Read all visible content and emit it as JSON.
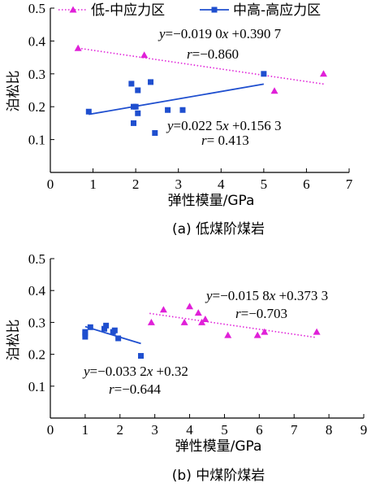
{
  "chart_data": [
    {
      "type": "scatter",
      "caption": "(a) 低煤阶煤岩",
      "xlabel": "弹性模量/GPa",
      "ylabel": "泊松比",
      "xlim": [
        0,
        7
      ],
      "ylim": [
        0,
        0.5
      ],
      "xticks": [
        "0",
        "1",
        "2",
        "3",
        "4",
        "5",
        "6",
        "7"
      ],
      "yticks": [
        "0.1",
        "0.2",
        "0.3",
        "0.4",
        "0.5"
      ],
      "legend_position": "top",
      "series": [
        {
          "name": "低-中应力区",
          "color": "#e020d8",
          "marker": "triangle",
          "line_style": "dotted",
          "x": [
            0.65,
            2.2,
            5.25,
            6.4
          ],
          "y": [
            0.378,
            0.357,
            0.248,
            0.3
          ],
          "fit": {
            "slope": -0.019,
            "intercept": 0.3907,
            "x_range": [
              0.65,
              6.4
            ]
          },
          "equation": "y=−0.019 0x +0.390 7",
          "r_text": "r=−0.860"
        },
        {
          "name": "中高-高应力区",
          "color": "#1f4fcf",
          "marker": "square",
          "line_style": "solid",
          "x": [
            0.9,
            1.9,
            1.95,
            1.95,
            2.0,
            2.05,
            2.05,
            2.35,
            2.45,
            2.75,
            3.1,
            5.0
          ],
          "y": [
            0.185,
            0.27,
            0.2,
            0.15,
            0.2,
            0.18,
            0.25,
            0.275,
            0.12,
            0.19,
            0.19,
            0.3
          ],
          "fit": {
            "slope": 0.0225,
            "intercept": 0.1563,
            "x_range": [
              0.9,
              5.0
            ]
          },
          "equation": "y=0.022 5x +0.156 3",
          "r_text": "r= 0.413"
        }
      ]
    },
    {
      "type": "scatter",
      "caption": "(b) 中煤阶煤岩",
      "xlabel": "弹性模量/GPa",
      "ylabel": "泊松比",
      "xlim": [
        0,
        9
      ],
      "ylim": [
        0,
        0.5
      ],
      "xticks": [
        "0",
        "1",
        "2",
        "3",
        "4",
        "5",
        "6",
        "7",
        "8",
        "9"
      ],
      "yticks": [
        "0.1",
        "0.2",
        "0.3",
        "0.4",
        "0.5"
      ],
      "series": [
        {
          "color": "#e020d8",
          "marker": "triangle",
          "line_style": "dotted",
          "x": [
            2.9,
            3.25,
            3.85,
            4.0,
            4.25,
            4.35,
            4.45,
            5.1,
            5.95,
            6.15,
            7.65
          ],
          "y": [
            0.3,
            0.34,
            0.3,
            0.35,
            0.33,
            0.3,
            0.31,
            0.26,
            0.26,
            0.27,
            0.27
          ],
          "fit": {
            "slope": -0.0158,
            "intercept": 0.3733,
            "x_range": [
              2.85,
              7.65
            ]
          },
          "equation": "y=−0.015 8x +0.373 3",
          "r_text": "r=−0.703"
        },
        {
          "color": "#1f4fcf",
          "marker": "square",
          "line_style": "solid",
          "x": [
            1.0,
            1.0,
            1.0,
            1.15,
            1.55,
            1.6,
            1.8,
            1.85,
            1.95,
            2.6
          ],
          "y": [
            0.27,
            0.265,
            0.255,
            0.285,
            0.28,
            0.29,
            0.27,
            0.275,
            0.25,
            0.195
          ],
          "fit": {
            "slope": -0.0332,
            "intercept": 0.32,
            "x_range": [
              1.0,
              2.6
            ]
          },
          "equation": "y=−0.033 2x +0.32",
          "r_text": "r=−0.644"
        }
      ]
    }
  ]
}
